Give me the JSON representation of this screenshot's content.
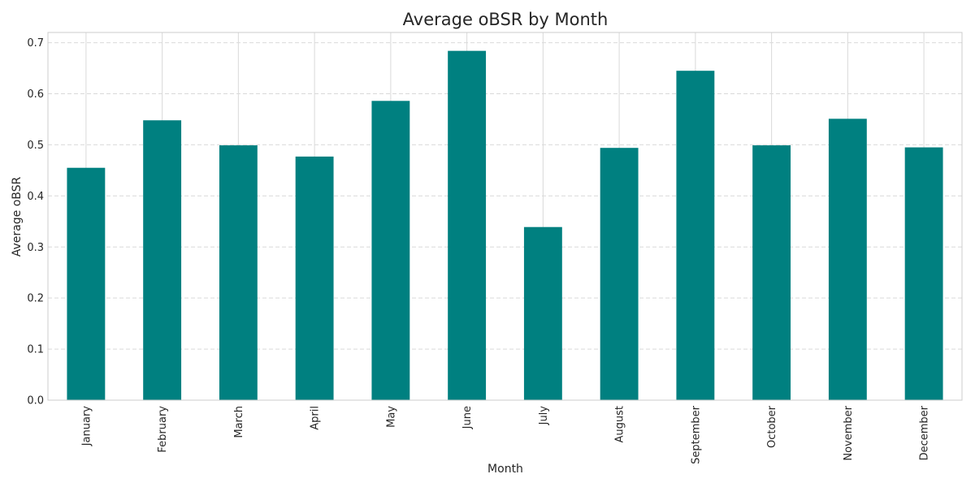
{
  "chart_data": {
    "type": "bar",
    "title": "Average oBSR by Month",
    "xlabel": "Month",
    "ylabel": "Average oBSR",
    "categories": [
      "January",
      "February",
      "March",
      "April",
      "May",
      "June",
      "July",
      "August",
      "September",
      "October",
      "November",
      "December"
    ],
    "values": [
      0.455,
      0.548,
      0.499,
      0.477,
      0.586,
      0.684,
      0.339,
      0.494,
      0.645,
      0.499,
      0.551,
      0.495
    ],
    "ylim": [
      0,
      0.72
    ],
    "yticks": [
      "0.0",
      "0.1",
      "0.2",
      "0.3",
      "0.4",
      "0.5",
      "0.6",
      "0.7"
    ],
    "grid": true,
    "legend": "none",
    "colors": {
      "bar": "#008080",
      "grid": "#d9d9d9",
      "spine": "#cccccc",
      "text": "#262626"
    }
  }
}
